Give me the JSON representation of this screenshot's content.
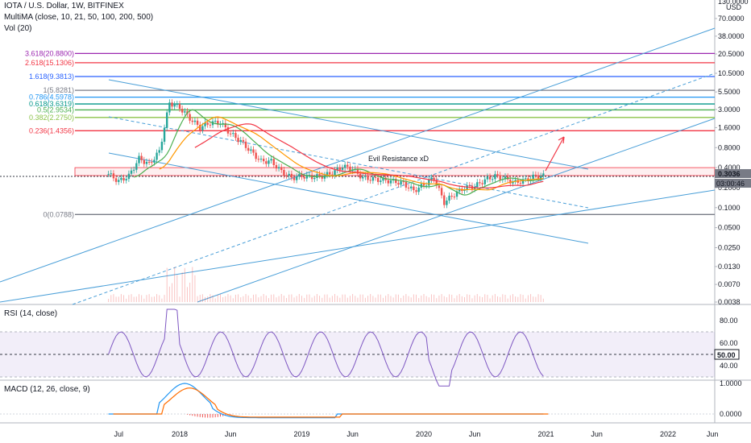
{
  "header": {
    "symbol_line": "IOTA / U.S. Dollar, 1W, BITFINEX",
    "multima_line": "MultiMA (close, 10, 21, 50, 100, 200, 500)",
    "vol_line": "Vol (20)"
  },
  "annotation": "Evil Resistance xD",
  "price_axis": {
    "currency_top": "130.0000",
    "currency": "USD",
    "ticks": [
      "70.0000",
      "38.0000",
      "20.5000",
      "10.5000",
      "5.5000",
      "3.0000",
      "1.6000",
      "0.8000",
      "0.4000",
      "0.2000",
      "0.1000",
      "0.0500",
      "0.0250",
      "0.0130",
      "0.0070",
      "0.0038"
    ],
    "last_price": "0.3036",
    "countdown": "03:00:46"
  },
  "rsi": {
    "label": "RSI (14, close)",
    "ticks": [
      "80.00",
      "60.00",
      "40.00"
    ],
    "current": "50.00"
  },
  "macd": {
    "label": "MACD (12, 26, close, 9)",
    "ticks": [
      "1.0000",
      "0.0000"
    ]
  },
  "time_axis": [
    "Jul",
    "2018",
    "Jun",
    "2019",
    "Jun",
    "2020",
    "Jun",
    "2021",
    "Jun",
    "2022",
    "Jun"
  ],
  "fib_levels": [
    {
      "label": "3.618(20.8800)",
      "color": "#9c27b0"
    },
    {
      "label": "2.618(15.1306)",
      "color": "#f23645"
    },
    {
      "label": "1.618(9.3813)",
      "color": "#2962ff"
    },
    {
      "label": "1(5.8281)",
      "color": "#787b86"
    },
    {
      "label": "0.786(4.5978)",
      "color": "#2196f3"
    },
    {
      "label": "0.618(3.6319)",
      "color": "#009688"
    },
    {
      "label": "0.5(2.9534)",
      "color": "#4caf50"
    },
    {
      "label": "0.382(2.2750)",
      "color": "#8bc34a"
    },
    {
      "label": "0.236(1.4356)",
      "color": "#f23645"
    },
    {
      "label": "0(0.0788)",
      "color": "#787b86"
    }
  ],
  "chart_data": {
    "type": "line",
    "title": "IOTA / U.S. Dollar, 1W, BITFINEX",
    "y_scale": "log",
    "ylim": [
      0.0038,
      130
    ],
    "x": [
      "2017-06",
      "2017-07",
      "2017-08",
      "2017-09",
      "2017-10",
      "2017-11",
      "2017-12",
      "2018-01",
      "2018-02",
      "2018-03",
      "2018-04",
      "2018-05",
      "2018-06",
      "2018-07",
      "2018-08",
      "2018-09",
      "2018-10",
      "2018-11",
      "2018-12",
      "2019-01",
      "2019-02",
      "2019-03",
      "2019-04",
      "2019-05",
      "2019-06",
      "2019-07",
      "2019-08",
      "2019-09",
      "2019-10",
      "2019-11",
      "2019-12",
      "2020-01",
      "2020-02",
      "2020-03",
      "2020-04",
      "2020-05",
      "2020-06",
      "2020-07",
      "2020-08",
      "2020-09",
      "2020-10",
      "2020-11",
      "2020-12"
    ],
    "series": [
      {
        "values": [
          0.32,
          0.25,
          0.3,
          0.55,
          0.45,
          0.7,
          3.8,
          3.2,
          2.2,
          1.6,
          1.9,
          1.9,
          1.3,
          1.0,
          0.7,
          0.5,
          0.5,
          0.35,
          0.28,
          0.3,
          0.29,
          0.3,
          0.33,
          0.42,
          0.38,
          0.28,
          0.27,
          0.26,
          0.25,
          0.23,
          0.18,
          0.22,
          0.28,
          0.12,
          0.16,
          0.2,
          0.21,
          0.26,
          0.3,
          0.27,
          0.24,
          0.26,
          0.3
        ]
      }
    ],
    "annotation": "Evil Resistance xD",
    "legend": "none",
    "grid": false
  }
}
